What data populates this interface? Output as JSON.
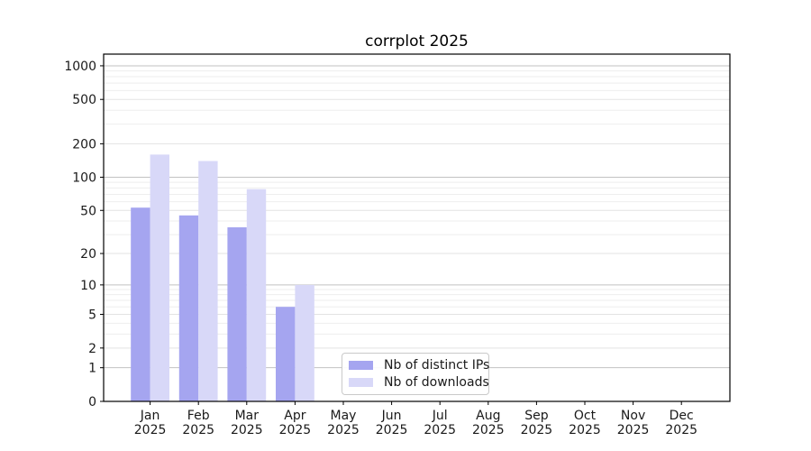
{
  "chart_data": {
    "type": "bar",
    "title": "corrplot 2025",
    "categories": [
      "Jan 2025",
      "Feb 2025",
      "Mar 2025",
      "Apr 2025",
      "May 2025",
      "Jun 2025",
      "Jul 2025",
      "Aug 2025",
      "Sep 2025",
      "Oct 2025",
      "Nov 2025",
      "Dec 2025"
    ],
    "series": [
      {
        "name": "Nb of distinct IPs",
        "color": "#a5a5f0",
        "values": [
          53,
          45,
          35,
          6,
          0,
          0,
          0,
          0,
          0,
          0,
          0,
          0
        ]
      },
      {
        "name": "Nb of downloads",
        "color": "#d8d8f8",
        "values": [
          160,
          140,
          78,
          10,
          0,
          0,
          0,
          0,
          0,
          0,
          0,
          0
        ]
      }
    ],
    "xlabel": "",
    "ylabel": "",
    "yscale": "log1p",
    "ylim": [
      0,
      1270
    ],
    "yticks": [
      0,
      1,
      2,
      5,
      10,
      20,
      50,
      100,
      200,
      500,
      1000
    ],
    "ytick_decades": [
      1,
      10,
      100,
      1000
    ],
    "yticks_minor": [
      3,
      4,
      6,
      7,
      8,
      9,
      30,
      40,
      60,
      70,
      80,
      90,
      300,
      400,
      600,
      700,
      800,
      900
    ],
    "grid": "horizontal",
    "legend_position": "lower-center-left"
  },
  "colors": {
    "background": "#ffffff",
    "spine": "#000000",
    "text": "#1a1a1a",
    "grid_major": "#c2c2c2",
    "grid_mid": "#e3e3e3",
    "grid_minor": "#eeeeee"
  }
}
